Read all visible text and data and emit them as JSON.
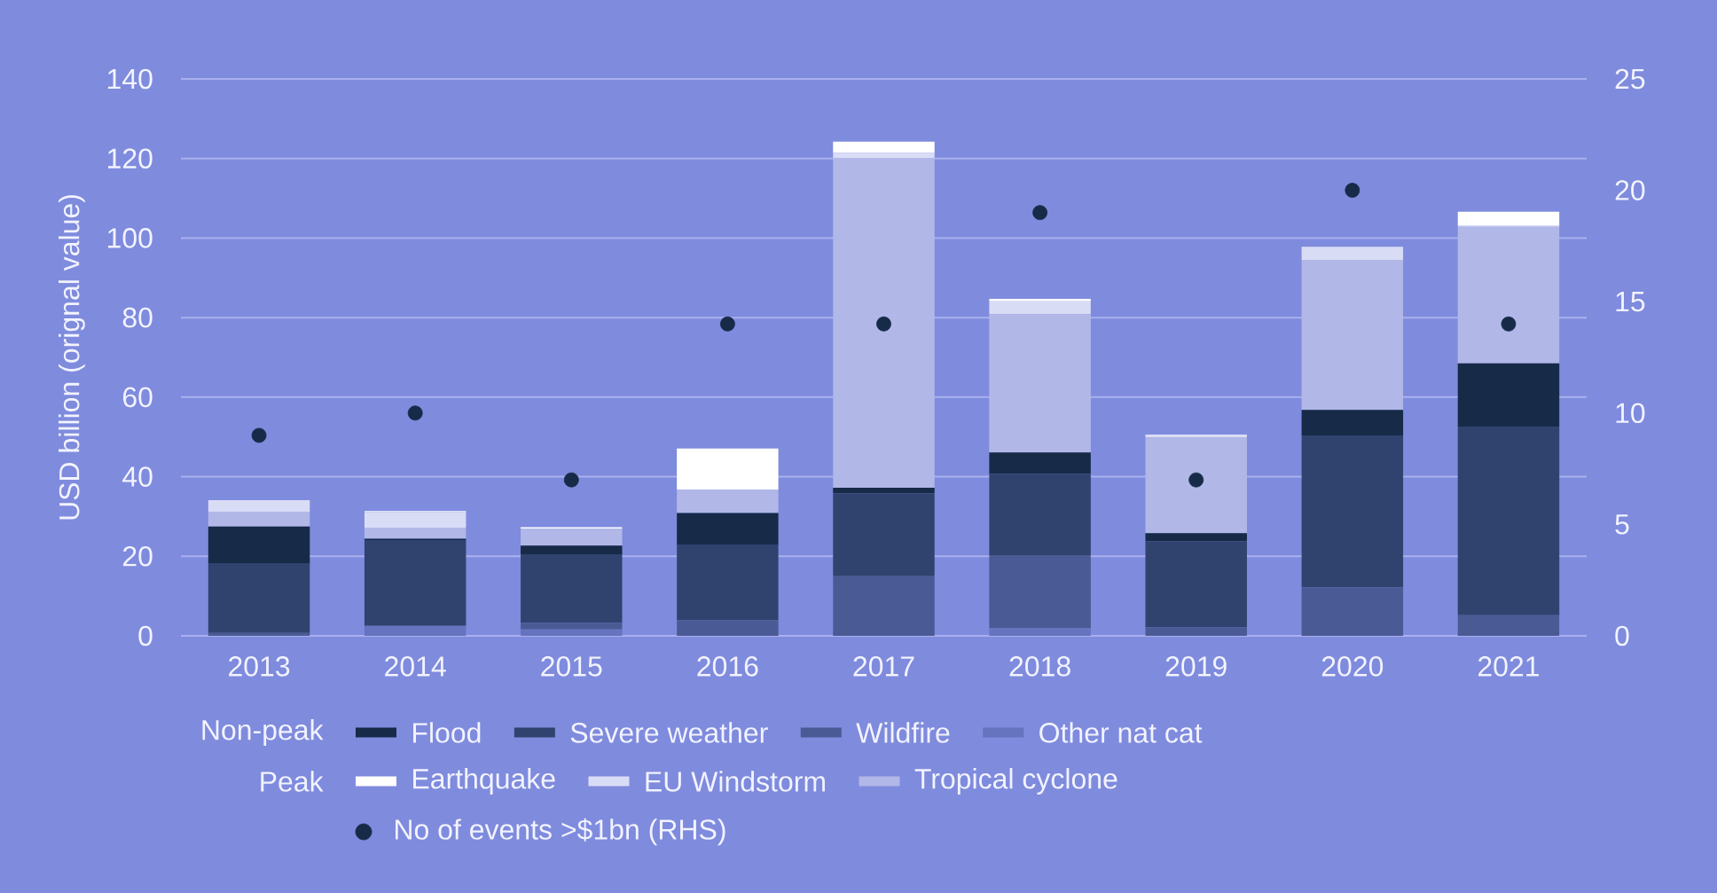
{
  "chart_data": {
    "type": "bar",
    "stacked": true,
    "grid": "y",
    "legend": "bottom",
    "ylabel": "USD billion (orignal value)",
    "categories": [
      "2013",
      "2014",
      "2015",
      "2016",
      "2017",
      "2018",
      "2019",
      "2020",
      "2021"
    ],
    "ylim": [
      0,
      140
    ],
    "yticks": [
      0,
      20,
      40,
      60,
      80,
      100,
      120,
      140
    ],
    "y2lim": [
      0,
      25
    ],
    "y2ticks": [
      0,
      5,
      10,
      15,
      20,
      25
    ],
    "annotations": [
      "Non-peak",
      "Peak"
    ],
    "series": [
      {
        "name": "Other nat cat",
        "color": "#6673be",
        "values": [
          0,
          2.5,
          1.6,
          0,
          0,
          1.9,
          0,
          0,
          0
        ]
      },
      {
        "name": "Wildfire",
        "color": "#4a5a94",
        "values": [
          0.7,
          0,
          1.7,
          3.9,
          15.0,
          18.2,
          2.1,
          12.2,
          5.2
        ]
      },
      {
        "name": "Severe weather",
        "color": "#30436f",
        "values": [
          17.4,
          21.6,
          17.2,
          18.9,
          20.8,
          20.6,
          21.7,
          38.0,
          47.4
        ]
      },
      {
        "name": "Flood",
        "color": "#172a48",
        "values": [
          9.4,
          0.3,
          2.2,
          8.1,
          1.4,
          5.4,
          2.0,
          6.6,
          15.9
        ]
      },
      {
        "name": "Tropical cyclone",
        "color": "#b1b8e8",
        "values": [
          3.7,
          2.8,
          4.2,
          5.8,
          82.9,
          34.7,
          24.0,
          37.7,
          34.3
        ]
      },
      {
        "name": "EU Windstorm",
        "color": "#d9dcf5",
        "values": [
          2.9,
          3.9,
          0,
          0,
          1.3,
          3.3,
          0.8,
          3.3,
          0.4
        ]
      },
      {
        "name": "Earthquake",
        "color": "#ffffff",
        "values": [
          0,
          0.3,
          0.4,
          10.4,
          2.8,
          0.6,
          0,
          0,
          3.4
        ]
      },
      {
        "name": "No of events >$1bn (RHS)",
        "type": "scatter",
        "axis": "y2",
        "marker": "circle",
        "color": "#172a48",
        "values": [
          9,
          10,
          7,
          14,
          14,
          19,
          7,
          20,
          14
        ]
      }
    ]
  }
}
